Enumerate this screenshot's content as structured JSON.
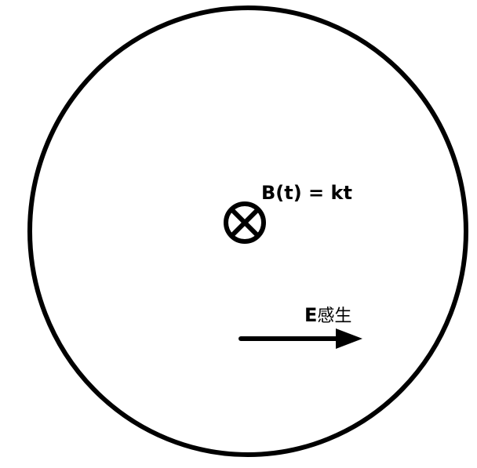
{
  "diagram": {
    "field_label": "B(t) = kt",
    "field_direction_icon": "into-page-icon",
    "efield_label_prefix": "E",
    "efield_label_sub": "感生",
    "arrow_icon": "arrow-right-icon",
    "colors": {
      "stroke": "#000000",
      "background": "#ffffff"
    }
  }
}
